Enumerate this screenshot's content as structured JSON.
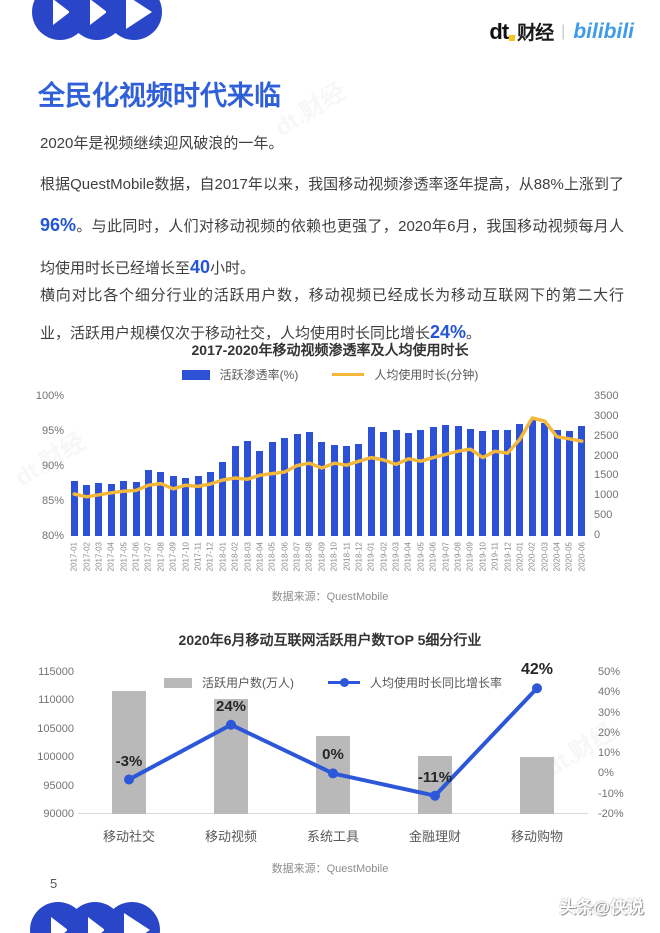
{
  "page": {
    "number": "5",
    "watermark": "头条@侠说",
    "bg_watermark": "dt.财经"
  },
  "header": {
    "logo": "play-circles-sketch",
    "brand": {
      "dt": "dt",
      "name": "财经",
      "separator": "|",
      "partner": "bilibili"
    }
  },
  "title": "全民化视频时代来临",
  "paragraphs": {
    "p1": "2020年是视频继续迎风破浪的一年。",
    "p2_part1": "根据QuestMobile数据，自2017年以来，我国移动视频渗透率逐年提高，从88%上涨到了",
    "p2_highlight1": "96%",
    "p2_part2": "。与此同时，人们对移动视频的依赖也更强了，2020年6月，我国移动视频每月人均使用时长已经增长至",
    "p2_highlight2": "40",
    "p2_part3": "小时。",
    "p3_part1": "横向对比各个细分行业的活跃用户数，移动视频已经成长为移动互联网下的第二大行业，活跃用户规模仅次于移动社交，人均使用时长同比增长",
    "p3_highlight": "24%",
    "p3_part2": "。"
  },
  "colors": {
    "accent_blue": "#2f5fd9",
    "highlight_blue": "#2456d4",
    "bar_blue": "#2c50d6",
    "line_yellow": "#f3b73a",
    "bar_gray": "#b9b9b9",
    "line_blue": "#2b57d8",
    "bilibili_blue": "#3f9be8",
    "dt_yellow": "#f5c518"
  },
  "chart_data": [
    {
      "type": "bar+line",
      "title": "2017-2020年移动视频渗透率及人均使用时长",
      "source": "数据来源：QuestMobile",
      "legend_position": "top-center",
      "grid": false,
      "categories": [
        "2017-01",
        "2017-02",
        "2017-03",
        "2017-04",
        "2017-05",
        "2017-06",
        "2017-07",
        "2017-08",
        "2017-09",
        "2017-10",
        "2017-11",
        "2017-12",
        "2018-01",
        "2018-02",
        "2018-03",
        "2018-04",
        "2018-05",
        "2018-06",
        "2018-07",
        "2018-08",
        "2018-09",
        "2018-10",
        "2018-11",
        "2018-12",
        "2019-01",
        "2019-02",
        "2019-03",
        "2019-04",
        "2019-05",
        "2019-06",
        "2019-07",
        "2019-08",
        "2019-09",
        "2019-10",
        "2019-11",
        "2019-12",
        "2020-01",
        "2020-02",
        "2020-03",
        "2020-04",
        "2020-05",
        "2020-06"
      ],
      "series": [
        {
          "name": "活跃渗透率(%)",
          "type": "bar",
          "axis": "left",
          "color": "#2c50d6",
          "values": [
            87.9,
            87.3,
            87.6,
            87.5,
            87.9,
            87.7,
            89.4,
            89.1,
            88.6,
            88.3,
            88.6,
            89.1,
            90.6,
            92.9,
            93.6,
            92.2,
            93.4,
            94.0,
            94.6,
            94.9,
            93.4,
            93.0,
            92.9,
            93.1,
            95.6,
            94.9,
            95.2,
            94.7,
            95.2,
            95.6,
            95.9,
            95.7,
            95.3,
            95.0,
            95.1,
            95.2,
            96.0,
            96.6,
            96.1,
            95.2,
            95.0,
            95.7
          ]
        },
        {
          "name": "人均使用时长(分钟)",
          "type": "line",
          "axis": "right",
          "color": "#f3b73a",
          "values": [
            1050,
            980,
            1030,
            1080,
            1120,
            1140,
            1270,
            1310,
            1180,
            1270,
            1240,
            1300,
            1400,
            1450,
            1420,
            1520,
            1560,
            1600,
            1760,
            1820,
            1700,
            1820,
            1770,
            1870,
            1960,
            1900,
            1790,
            1930,
            1870,
            1960,
            2040,
            2120,
            2170,
            1960,
            2120,
            2070,
            2420,
            2950,
            2870,
            2480,
            2430,
            2370
          ]
        }
      ],
      "left_axis": {
        "min": 80,
        "max": 100,
        "ticks": [
          "100%",
          "95%",
          "90%",
          "85%",
          "80%"
        ]
      },
      "right_axis": {
        "min": 0,
        "max": 3500,
        "ticks": [
          "3500",
          "3000",
          "2500",
          "2000",
          "1500",
          "1000",
          "500",
          "0"
        ]
      }
    },
    {
      "type": "bar+line",
      "title": "2020年6月移动互联网活跃用户数TOP 5细分行业",
      "source": "数据来源：QuestMobile",
      "legend_position": "top-center-inside",
      "grid": false,
      "categories": [
        "移动社交",
        "移动视频",
        "系统工具",
        "金融理财",
        "移动购物"
      ],
      "series": [
        {
          "name": "活跃用户数(万人)",
          "type": "bar",
          "axis": "left",
          "color": "#b9b9b9",
          "values": [
            111600,
            110300,
            103700,
            100200,
            100000
          ]
        },
        {
          "name": "人均使用时长同比增长率",
          "type": "line",
          "axis": "right",
          "color": "#2b57d8",
          "values": [
            -3,
            24,
            0,
            -11,
            42
          ],
          "labels": [
            "-3%",
            "24%",
            "0%",
            "-11%",
            "42%"
          ]
        }
      ],
      "left_axis": {
        "min": 90000,
        "max": 115000,
        "ticks": [
          "115000",
          "110000",
          "105000",
          "100000",
          "95000",
          "90000"
        ]
      },
      "right_axis": {
        "min": -20,
        "max": 50,
        "ticks": [
          "50%",
          "40%",
          "30%",
          "20%",
          "10%",
          "0%",
          "-10%",
          "-20%"
        ]
      }
    }
  ]
}
